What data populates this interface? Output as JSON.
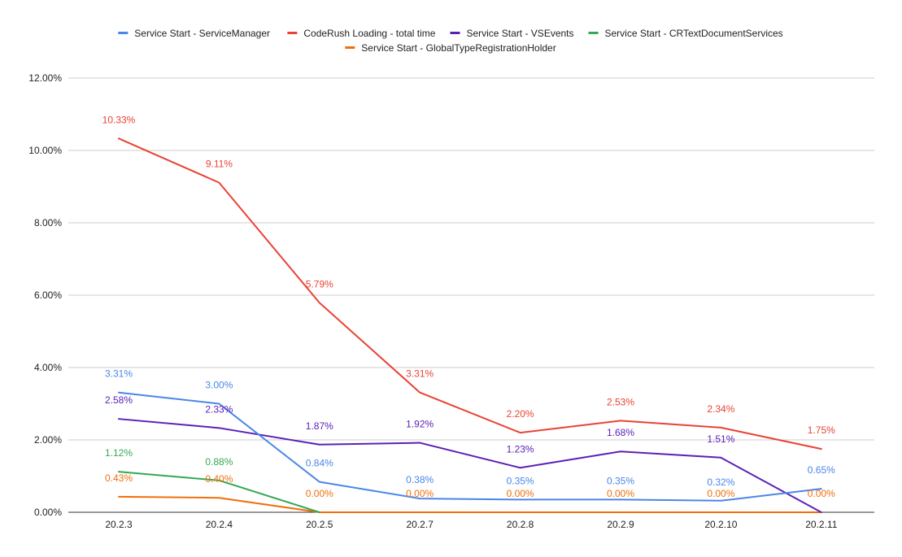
{
  "chart_data": {
    "type": "line",
    "title": "",
    "xlabel": "",
    "ylabel": "",
    "categories": [
      "20.2.3",
      "20.2.4",
      "20.2.5",
      "20.2.7",
      "20.2.8",
      "20.2.9",
      "20.2.10",
      "20.2.11"
    ],
    "ylim": [
      0,
      12
    ],
    "y_ticks": [
      "0.00%",
      "2.00%",
      "4.00%",
      "6.00%",
      "8.00%",
      "10.00%",
      "12.00%"
    ],
    "grid": true,
    "legend_position": "top",
    "series": [
      {
        "name": "Service Start  - ServiceManager",
        "color": "#4a86e8",
        "values": [
          3.31,
          3.0,
          0.84,
          0.38,
          0.35,
          0.35,
          0.32,
          0.65
        ],
        "labels": [
          "3.31%",
          "3.00%",
          "0.84%",
          "0.38%",
          "0.35%",
          "0.35%",
          "0.32%",
          "0.65%"
        ]
      },
      {
        "name": "CodeRush Loading - total time",
        "color": "#e94335",
        "values": [
          10.33,
          9.11,
          5.79,
          3.31,
          2.2,
          2.53,
          2.34,
          1.75
        ],
        "labels": [
          "10.33%",
          "9.11%",
          "5.79%",
          "3.31%",
          "2.20%",
          "2.53%",
          "2.34%",
          "1.75%"
        ]
      },
      {
        "name": "Service Start - VSEvents",
        "color": "#5b21b6",
        "values": [
          2.58,
          2.33,
          1.87,
          1.92,
          1.23,
          1.68,
          1.51,
          0.0
        ],
        "labels": [
          "2.58%",
          "2.33%",
          "1.87%",
          "1.92%",
          "1.23%",
          "1.68%",
          "1.51%",
          ""
        ]
      },
      {
        "name": "Service Start - CRTextDocumentServices",
        "color": "#34a853",
        "values": [
          1.12,
          0.88,
          0.0,
          null,
          null,
          null,
          null,
          null
        ],
        "labels": [
          "1.12%",
          "0.88%",
          "",
          "",
          "",
          "",
          "",
          ""
        ]
      },
      {
        "name": "Service Start - GlobalTypeRegistrationHolder",
        "color": "#f06f0c",
        "values": [
          0.43,
          0.4,
          0.0,
          0.0,
          0.0,
          0.0,
          0.0,
          0.0
        ],
        "labels": [
          "0.43%",
          "0.40%",
          "0.00%",
          "0.00%",
          "0.00%",
          "0.00%",
          "0.00%",
          "0.00%"
        ]
      }
    ]
  }
}
